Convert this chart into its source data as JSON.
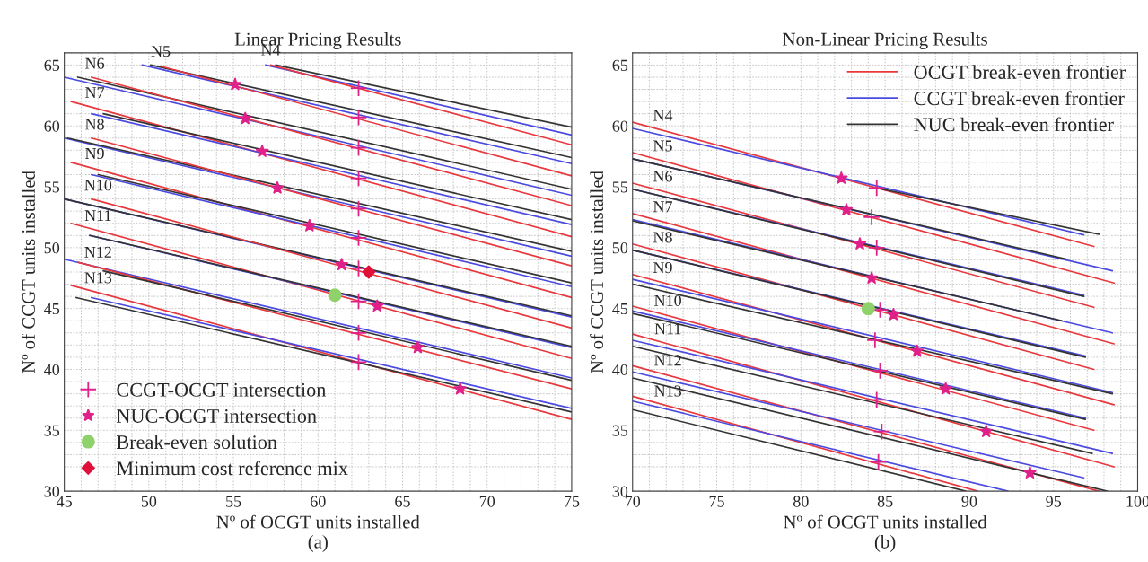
{
  "chart_data": [
    {
      "type": "line",
      "title": "Linear Pricing Results",
      "xlabel": "Nº of OCGT units installed",
      "ylabel": "Nº of CCGT units installed",
      "xlim": [
        45,
        75
      ],
      "ylim": [
        30,
        66
      ],
      "xticks": [
        45,
        50,
        55,
        60,
        65,
        70,
        75
      ],
      "yticks": [
        30,
        35,
        40,
        45,
        50,
        55,
        60,
        65
      ],
      "grid": true,
      "legend": "bottom left",
      "series": [
        {
          "color": "#333333",
          "x": [
            57.5,
            75
          ],
          "values": [
            65,
            59.9
          ]
        },
        {
          "color": "#4a4ae0",
          "x": [
            56.9,
            75
          ],
          "values": [
            65,
            59.25
          ]
        },
        {
          "color": "#e8383d",
          "x": [
            57.2,
            75
          ],
          "values": [
            65,
            58.45
          ]
        },
        {
          "color": "#333333",
          "x": [
            50.1,
            75
          ],
          "values": [
            65,
            57.4
          ]
        },
        {
          "color": "#4a4ae0",
          "x": [
            49.6,
            75
          ],
          "values": [
            65,
            56.9
          ]
        },
        {
          "color": "#e8383d",
          "x": [
            50.7,
            75
          ],
          "values": [
            64.9,
            55.9
          ]
        },
        {
          "color": "#4a4ae0",
          "x": [
            45,
            75
          ],
          "values": [
            64.0,
            54.3
          ]
        },
        {
          "color": "#333333",
          "x": [
            45.8,
            75
          ],
          "values": [
            64.0,
            54.8
          ]
        },
        {
          "color": "#e8383d",
          "x": [
            46.6,
            75
          ],
          "values": [
            64.0,
            53.45
          ]
        },
        {
          "color": "#e8383d",
          "x": [
            45.4,
            75
          ],
          "values": [
            62.0,
            50.9
          ]
        },
        {
          "color": "#4a4ae0",
          "x": [
            46.6,
            75
          ],
          "values": [
            61.0,
            51.9
          ]
        },
        {
          "color": "#333333",
          "x": [
            47.3,
            75
          ],
          "values": [
            61.0,
            52.3
          ]
        },
        {
          "color": "#4a4ae0",
          "x": [
            45,
            75
          ],
          "values": [
            59.0,
            49.3
          ]
        },
        {
          "color": "#333333",
          "x": [
            45.2,
            75
          ],
          "values": [
            59.0,
            49.7
          ]
        },
        {
          "color": "#e8383d",
          "x": [
            46.6,
            75
          ],
          "values": [
            59.0,
            48.5
          ]
        },
        {
          "color": "#e8383d",
          "x": [
            45.4,
            75
          ],
          "values": [
            57.0,
            45.9
          ]
        },
        {
          "color": "#4a4ae0",
          "x": [
            46.6,
            75
          ],
          "values": [
            56.0,
            46.8
          ]
        },
        {
          "color": "#333333",
          "x": [
            47,
            75
          ],
          "values": [
            56.0,
            47.1
          ]
        },
        {
          "color": "#4a4ae0",
          "x": [
            45,
            75
          ],
          "values": [
            54.0,
            44.3
          ]
        },
        {
          "color": "#333333",
          "x": [
            45,
            75
          ],
          "values": [
            54.0,
            44.4
          ]
        },
        {
          "color": "#e8383d",
          "x": [
            46.6,
            75
          ],
          "values": [
            54.0,
            43.4
          ]
        },
        {
          "color": "#e8383d",
          "x": [
            45.4,
            75
          ],
          "values": [
            52.0,
            40.9
          ]
        },
        {
          "color": "#4a4ae0",
          "x": [
            46.5,
            75
          ],
          "values": [
            51.0,
            41.8
          ]
        },
        {
          "color": "#333333",
          "x": [
            46.5,
            75
          ],
          "values": [
            51.0,
            41.9
          ]
        },
        {
          "color": "#4a4ae0",
          "x": [
            45,
            75
          ],
          "values": [
            49.05,
            39.3
          ]
        },
        {
          "color": "#e8383d",
          "x": [
            45.8,
            75
          ],
          "values": [
            48.8,
            38.4
          ]
        },
        {
          "color": "#333333",
          "x": [
            47.3,
            75
          ],
          "values": [
            48.1,
            39.1
          ]
        },
        {
          "color": "#e8383d",
          "x": [
            45.4,
            75
          ],
          "values": [
            46.9,
            35.9
          ]
        },
        {
          "color": "#333333",
          "x": [
            45.7,
            75
          ],
          "values": [
            45.9,
            36.5
          ]
        },
        {
          "color": "#4a4ae0",
          "x": [
            46.6,
            75
          ],
          "values": [
            45.9,
            36.8
          ]
        },
        {
          "type": "scatter",
          "name": "CCGT-OCGT intersection",
          "color": "#e0218a",
          "marker": "cross",
          "x": [
            62.4,
            62.4,
            62.4,
            62.4,
            62.4,
            62.4,
            62.4,
            62.4,
            62.4,
            62.4
          ],
          "values": [
            63.1,
            60.7,
            58.2,
            55.7,
            53.2,
            50.8,
            48.3,
            45.6,
            43.0,
            40.6
          ]
        },
        {
          "type": "scatter",
          "name": "NUC-OCGT intersection",
          "color": "#e0218a",
          "marker": "star",
          "x": [
            55.1,
            55.7,
            56.7,
            57.6,
            59.5,
            61.4,
            63.5,
            65.9,
            68.4
          ],
          "values": [
            63.4,
            60.6,
            57.9,
            54.9,
            51.8,
            48.6,
            45.2,
            41.8,
            38.4
          ]
        },
        {
          "type": "scatter",
          "name": "Break-even solution",
          "color": "#8fd16a",
          "marker": "circle",
          "x": [
            61.0
          ],
          "values": [
            46.1
          ]
        },
        {
          "type": "scatter",
          "name": "Minimum cost reference mix",
          "color": "#e0103a",
          "marker": "diamond",
          "x": [
            63.0
          ],
          "values": [
            48.0
          ]
        }
      ],
      "annotations": [
        {
          "text": "N4",
          "x": 57.2,
          "y": 65.0
        },
        {
          "text": "N5",
          "x": 50.7,
          "y": 64.9
        },
        {
          "text": "N6",
          "x": 46.8,
          "y": 63.9
        },
        {
          "text": "N7",
          "x": 46.8,
          "y": 61.5
        },
        {
          "text": "N8",
          "x": 46.8,
          "y": 58.9
        },
        {
          "text": "N9",
          "x": 46.8,
          "y": 56.5
        },
        {
          "text": "N10",
          "x": 47.0,
          "y": 53.9
        },
        {
          "text": "N11",
          "x": 47.0,
          "y": 51.4
        },
        {
          "text": "N12",
          "x": 47.0,
          "y": 48.4
        },
        {
          "text": "N13",
          "x": 47.0,
          "y": 46.3
        },
        "(a)"
      ]
    },
    {
      "type": "line",
      "title": "Non-Linear Pricing Results",
      "xlabel": "Nº of OCGT units installed",
      "ylabel": "Nº of CCGT units installed",
      "xlim": [
        70,
        100
      ],
      "ylim": [
        30,
        66
      ],
      "xticks": [
        70,
        75,
        80,
        85,
        90,
        95,
        100
      ],
      "yticks": [
        30,
        35,
        40,
        45,
        50,
        55,
        60,
        65
      ],
      "grid": true,
      "legend": "top right",
      "series": [
        {
          "name": "OCGT break-even frontier",
          "color": "#e8383d",
          "x": [
            70,
            97.4
          ],
          "values": [
            60.3,
            50.1
          ]
        },
        {
          "name": "CCGT break-even frontier",
          "color": "#4a4ae0",
          "x": [
            70,
            96.8
          ],
          "values": [
            59.8,
            51.05
          ]
        },
        {
          "name": "NUC break-even frontier",
          "color": "#333333",
          "x": [
            84.5,
            97.7
          ],
          "values": [
            54.9,
            51.1
          ]
        },
        {
          "color": "#e8383d",
          "x": [
            70,
            98.6
          ],
          "values": [
            57.8,
            47.1
          ]
        },
        {
          "color": "#4a4ae0",
          "x": [
            70,
            98.5
          ],
          "values": [
            57.3,
            48.1
          ]
        },
        {
          "color": "#333333",
          "x": [
            70,
            95.8
          ],
          "values": [
            57.3,
            49.05
          ]
        },
        {
          "color": "#e8383d",
          "x": [
            70,
            97.4
          ],
          "values": [
            55.3,
            45.1
          ]
        },
        {
          "color": "#4a4ae0",
          "x": [
            70,
            96.8
          ],
          "values": [
            54.8,
            46.1
          ]
        },
        {
          "color": "#333333",
          "x": [
            70,
            96.8
          ],
          "values": [
            54.8,
            46.0
          ]
        },
        {
          "color": "#e8383d",
          "x": [
            70,
            98.6
          ],
          "values": [
            52.8,
            42.1
          ]
        },
        {
          "color": "#4a4ae0",
          "x": [
            70,
            98.5
          ],
          "values": [
            52.3,
            43.0
          ]
        },
        {
          "color": "#333333",
          "x": [
            70,
            95.5
          ],
          "values": [
            52.2,
            44.0
          ]
        },
        {
          "color": "#e8383d",
          "x": [
            70,
            97.4
          ],
          "values": [
            50.3,
            40.0
          ]
        },
        {
          "color": "#4a4ae0",
          "x": [
            70,
            96.9
          ],
          "values": [
            49.8,
            41.1
          ]
        },
        {
          "color": "#333333",
          "x": [
            70,
            96.9
          ],
          "values": [
            49.8,
            41.0
          ]
        },
        {
          "color": "#e8383d",
          "x": [
            70,
            98.6
          ],
          "values": [
            47.8,
            37.1
          ]
        },
        {
          "color": "#4a4ae0",
          "x": [
            70,
            98.5
          ],
          "values": [
            47.4,
            38.1
          ]
        },
        {
          "color": "#333333",
          "x": [
            70,
            98.5
          ],
          "values": [
            47.0,
            38.0
          ]
        },
        {
          "color": "#e8383d",
          "x": [
            70,
            97.4
          ],
          "values": [
            45.2,
            35.0
          ]
        },
        {
          "color": "#4a4ae0",
          "x": [
            70,
            96.9
          ],
          "values": [
            44.8,
            36.0
          ]
        },
        {
          "color": "#333333",
          "x": [
            70,
            96.9
          ],
          "values": [
            44.6,
            35.9
          ]
        },
        {
          "color": "#e8383d",
          "x": [
            70,
            98.6
          ],
          "values": [
            42.9,
            32.0
          ]
        },
        {
          "color": "#4a4ae0",
          "x": [
            70,
            98.5
          ],
          "values": [
            42.4,
            33.1
          ]
        },
        {
          "color": "#333333",
          "x": [
            70,
            97.3
          ],
          "values": [
            41.9,
            33.1
          ]
        },
        {
          "color": "#e8383d",
          "x": [
            70,
            97.7
          ],
          "values": [
            40.3,
            30
          ]
        },
        {
          "color": "#4a4ae0",
          "x": [
            70,
            96.8
          ],
          "values": [
            39.8,
            31.1
          ]
        },
        {
          "color": "#333333",
          "x": [
            70,
            98.2
          ],
          "values": [
            39.3,
            30
          ]
        },
        {
          "color": "#e8383d",
          "x": [
            70,
            90.5
          ],
          "values": [
            37.8,
            30
          ]
        },
        {
          "color": "#4a4ae0",
          "x": [
            70,
            92.3
          ],
          "values": [
            37.4,
            30
          ]
        },
        {
          "color": "#333333",
          "x": [
            70,
            89.8
          ],
          "values": [
            36.7,
            30
          ]
        },
        {
          "type": "scatter",
          "color": "#e0218a",
          "marker": "cross",
          "x": [
            84.5,
            84.2,
            84.5,
            84.7,
            84.4,
            84.7,
            84.5,
            84.8,
            84.6
          ],
          "values": [
            54.9,
            52.5,
            50.0,
            44.9,
            42.4,
            39.9,
            37.5,
            34.9,
            32.4
          ]
        },
        {
          "type": "scatter",
          "color": "#e0218a",
          "marker": "star",
          "x": [
            82.4,
            82.7,
            83.5,
            84.2,
            85.5,
            86.9,
            88.6,
            91.0,
            93.6
          ],
          "values": [
            55.7,
            53.1,
            50.3,
            47.5,
            44.5,
            41.5,
            38.4,
            34.9,
            31.5
          ]
        },
        {
          "type": "scatter",
          "color": "#8fd16a",
          "marker": "circle",
          "x": [
            84.0
          ],
          "values": [
            45.0
          ]
        }
      ],
      "annotations": [
        {
          "text": "N4",
          "x": 71.8,
          "y": 59.63
        },
        {
          "text": "N5",
          "x": 71.8,
          "y": 57.13
        },
        {
          "text": "N6",
          "x": 71.8,
          "y": 54.63
        },
        {
          "text": "N7",
          "x": 71.8,
          "y": 52.13
        },
        {
          "text": "N8",
          "x": 71.8,
          "y": 49.62
        },
        {
          "text": "N9",
          "x": 71.8,
          "y": 47.13
        },
        {
          "text": "N10",
          "x": 72.1,
          "y": 44.42
        },
        {
          "text": "N11",
          "x": 72.1,
          "y": 42.1
        },
        {
          "text": "N12",
          "x": 72.1,
          "y": 39.52
        },
        {
          "text": "N13",
          "x": 72.1,
          "y": 37.0
        },
        "(b)"
      ]
    }
  ]
}
